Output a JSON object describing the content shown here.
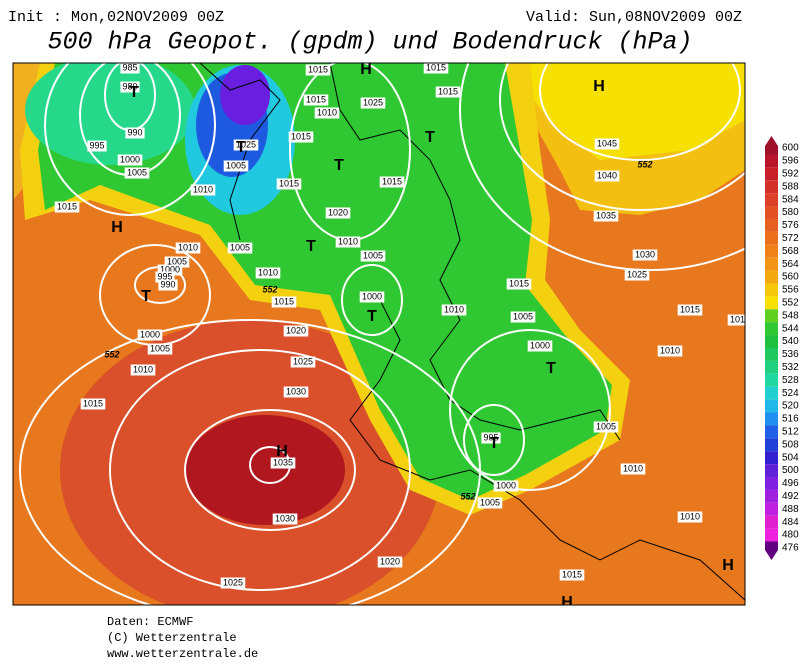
{
  "header": {
    "init": "Init : Mon,02NOV2009 00Z",
    "valid": "Valid: Sun,08NOV2009 00Z",
    "title": "500 hPa Geopot. (gpdm) und Bodendruck (hPa)"
  },
  "colorbar": {
    "labels": [
      600,
      596,
      592,
      588,
      584,
      580,
      576,
      572,
      568,
      564,
      560,
      556,
      552,
      548,
      544,
      540,
      536,
      532,
      528,
      524,
      520,
      516,
      512,
      508,
      504,
      500,
      496,
      492,
      488,
      484,
      480,
      476
    ]
  },
  "map": {
    "labels": [
      "985",
      "980",
      "990",
      "995",
      "1000",
      "1005",
      "1010",
      "1015",
      "1010",
      "1005",
      "1000",
      "995",
      "990",
      "1000",
      "1005",
      "1010",
      "1015",
      "1015",
      "1015",
      "1010",
      "1025",
      "1015",
      "1005",
      "1025",
      "1015",
      "1020",
      "1010",
      "1005",
      "1005",
      "1010",
      "1015",
      "1020",
      "1025",
      "1030",
      "1035",
      "1030",
      "1025",
      "1020",
      "1000",
      "1010",
      "1015",
      "1015",
      "1015",
      "1045",
      "1040",
      "1035",
      "1030",
      "1025",
      "1015",
      "1005",
      "1000",
      "1010",
      "1015",
      "1005",
      "995",
      "1000",
      "1005",
      "1010",
      "1010",
      "1015",
      "1015",
      "552",
      "552",
      "552",
      "552",
      "H",
      "H",
      "T",
      "T",
      "T",
      "T",
      "T",
      "H",
      "T",
      "T",
      "T",
      "T",
      "H",
      "H",
      "H"
    ]
  },
  "footer": [
    "Daten: ECMWF",
    "(C) Wetterzentrale",
    "www.wetterzentrale.de"
  ]
}
